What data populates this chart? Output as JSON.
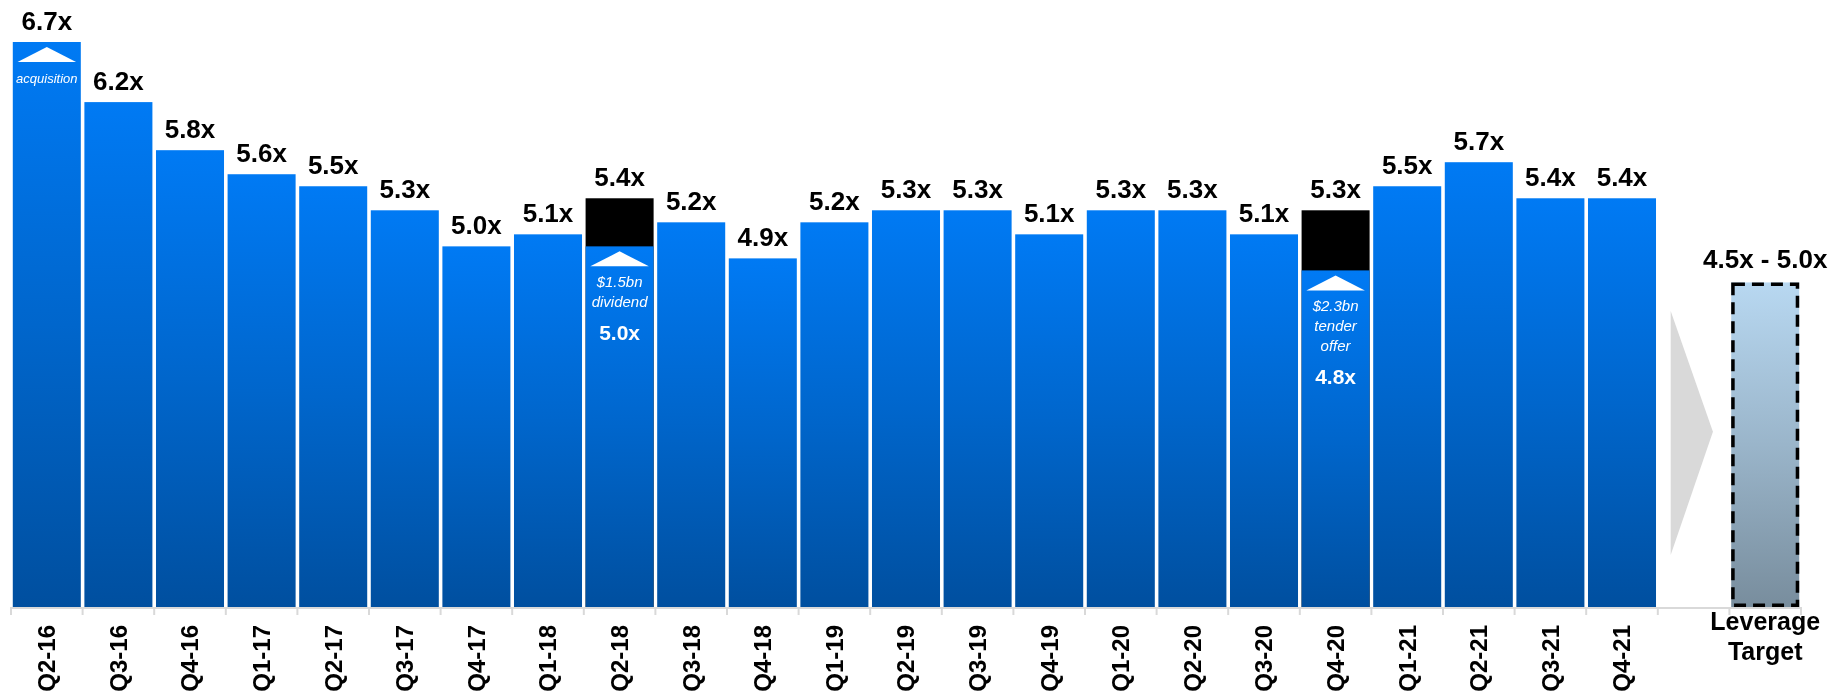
{
  "chart_data": {
    "type": "bar",
    "categories": [
      "Q2-16",
      "Q3-16",
      "Q4-16",
      "Q1-17",
      "Q2-17",
      "Q3-17",
      "Q4-17",
      "Q1-18",
      "Q2-18",
      "Q3-18",
      "Q4-18",
      "Q1-19",
      "Q2-19",
      "Q3-19",
      "Q4-19",
      "Q1-20",
      "Q2-20",
      "Q3-20",
      "Q4-20",
      "Q1-21",
      "Q2-21",
      "Q3-21",
      "Q4-21",
      null,
      "Leverage Target"
    ],
    "series": [
      {
        "color": "#000000",
        "values": [
          null,
          null,
          null,
          null,
          null,
          null,
          null,
          null,
          5.4,
          null,
          null,
          null,
          null,
          null,
          null,
          null,
          null,
          null,
          5.3,
          null,
          null,
          null,
          null,
          null,
          null
        ],
        "value_labels": [
          null,
          null,
          null,
          null,
          null,
          null,
          null,
          null,
          "5.4x",
          null,
          null,
          null,
          null,
          null,
          null,
          null,
          null,
          null,
          "5.3x",
          null,
          null,
          null,
          null,
          null,
          null
        ]
      },
      {
        "color": "#0066cc",
        "values": [
          6.7,
          6.2,
          5.8,
          5.6,
          5.5,
          5.3,
          5.0,
          5.1,
          5.0,
          5.2,
          4.9,
          5.2,
          5.3,
          5.3,
          5.1,
          5.3,
          5.3,
          5.1,
          4.8,
          5.5,
          5.7,
          5.4,
          5.4,
          null,
          null
        ],
        "value_labels": [
          "6.7x",
          "6.2x",
          "5.8x",
          "5.6x",
          "5.5x",
          "5.3x",
          "5.0x",
          "5.1x",
          "5.0x",
          "5.2x",
          "4.9x",
          "5.2x",
          "5.3x",
          "5.3x",
          "5.1x",
          "5.3x",
          "5.3x",
          "5.1x",
          "4.8x",
          "5.5x",
          "5.7x",
          "5.4x",
          "5.4x",
          null,
          null
        ]
      },
      {
        "color": "#9ab5ca",
        "line_style": "dashed",
        "values": [
          null,
          null,
          null,
          null,
          null,
          null,
          null,
          null,
          null,
          null,
          null,
          null,
          null,
          null,
          null,
          null,
          null,
          null,
          null,
          null,
          null,
          null,
          null,
          null,
          4.7
        ]
      }
    ],
    "ylim": [
      2,
      6.7
    ],
    "tick_labels": "x",
    "annotations": [
      {
        "text": "acquisition",
        "x": "Q2-16",
        "y": 6.7
      },
      {
        "text": "$1.5bn dividend",
        "x": "Q2-18",
        "y": 5.0
      },
      {
        "text": "$2.3bn tender offer",
        "x": "Q4-20",
        "y": 4.8
      },
      {
        "text": "4.5x - 5.0x",
        "x": "Leverage Target",
        "y": 4.7
      }
    ]
  }
}
